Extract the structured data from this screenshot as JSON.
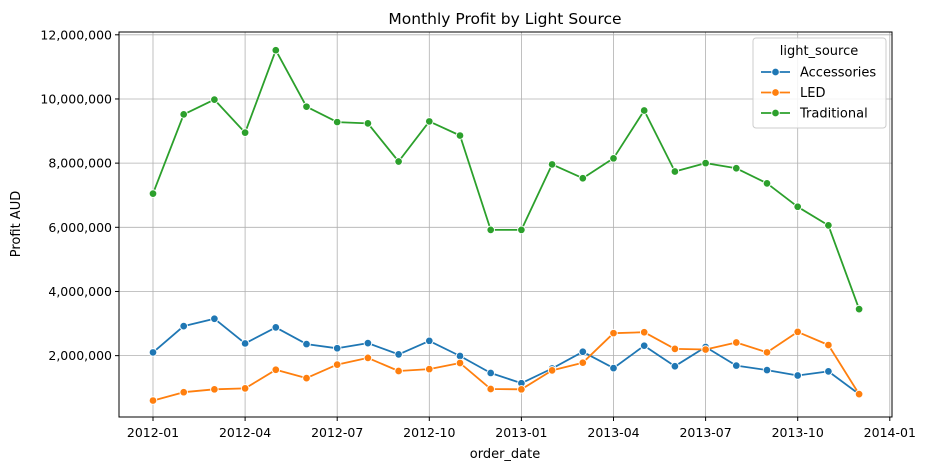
{
  "chart_data": {
    "type": "line",
    "title": "Monthly Profit by Light Source",
    "xlabel": "order_date",
    "ylabel": "Profit AUD",
    "x": [
      "2012-01",
      "2012-02",
      "2012-03",
      "2012-04",
      "2012-05",
      "2012-06",
      "2012-07",
      "2012-08",
      "2012-09",
      "2012-10",
      "2012-11",
      "2012-12",
      "2013-01",
      "2013-02",
      "2013-03",
      "2013-04",
      "2013-05",
      "2013-06",
      "2013-07",
      "2013-08",
      "2013-09",
      "2013-10",
      "2013-11",
      "2013-12"
    ],
    "x_ticks": [
      "2012-01",
      "2012-04",
      "2012-07",
      "2012-10",
      "2013-01",
      "2013-04",
      "2013-07",
      "2013-10",
      "2014-01"
    ],
    "y_ticks": [
      2000000,
      4000000,
      6000000,
      8000000,
      10000000,
      12000000
    ],
    "y_tick_labels": [
      "2,000,000",
      "4,000,000",
      "6,000,000",
      "8,000,000",
      "10,000,000",
      "12,000,000"
    ],
    "ylim": [
      0,
      12000000
    ],
    "grid": true,
    "legend_title": "light_source",
    "legend_position": "top-right",
    "series": [
      {
        "name": "Accessories",
        "color": "#1f77b4",
        "values": [
          2100000,
          2920000,
          3150000,
          2380000,
          2880000,
          2360000,
          2230000,
          2390000,
          2040000,
          2460000,
          1990000,
          1460000,
          1140000,
          1600000,
          2120000,
          1610000,
          2310000,
          1670000,
          2270000,
          1690000,
          1550000,
          1380000,
          1510000,
          800000
        ]
      },
      {
        "name": "LED",
        "color": "#ff7f0e",
        "values": [
          600000,
          860000,
          950000,
          980000,
          1560000,
          1300000,
          1720000,
          1930000,
          1520000,
          1580000,
          1770000,
          960000,
          950000,
          1540000,
          1780000,
          2700000,
          2730000,
          2210000,
          2190000,
          2410000,
          2100000,
          2740000,
          2330000,
          800000
        ]
      },
      {
        "name": "Traditional",
        "color": "#2ca02c",
        "values": [
          7050000,
          9520000,
          9980000,
          8950000,
          11520000,
          9760000,
          9280000,
          9240000,
          8050000,
          9300000,
          8860000,
          5920000,
          5920000,
          7960000,
          7530000,
          8150000,
          9640000,
          7740000,
          8000000,
          7840000,
          7370000,
          6640000,
          6060000,
          3450000
        ]
      }
    ]
  }
}
